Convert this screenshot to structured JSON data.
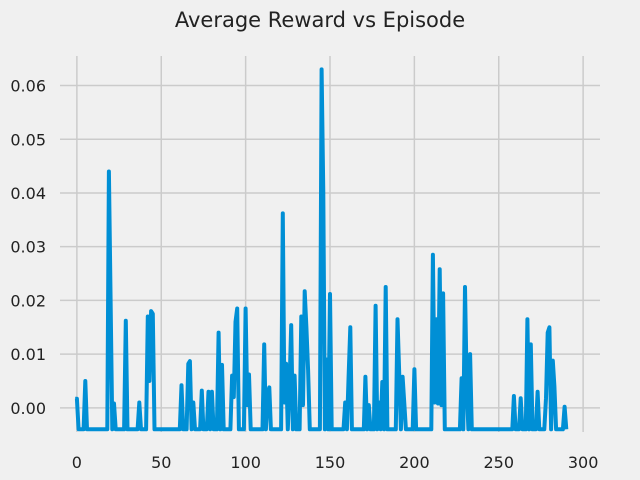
{
  "chart_data": {
    "type": "line",
    "title": "Average Reward vs Episode",
    "xlabel": "",
    "ylabel": "",
    "xlim": [
      -10,
      310
    ],
    "ylim": [
      -0.0045,
      0.0655
    ],
    "grid": true,
    "xticks": [
      0,
      50,
      100,
      150,
      200,
      250,
      300
    ],
    "yticks": [
      0.0,
      0.01,
      0.02,
      0.03,
      0.04,
      0.05,
      0.06
    ],
    "ytick_labels": [
      "0.00",
      "0.01",
      "0.02",
      "0.03",
      "0.04",
      "0.05",
      "0.06"
    ],
    "line_color": "#008fd5",
    "series": [
      {
        "points": [
          [
            -1,
            0.0017
          ],
          [
            0,
            0.0017
          ],
          [
            1,
            -0.004
          ],
          [
            4,
            -0.004
          ],
          [
            5,
            0.005
          ],
          [
            6,
            -0.004
          ],
          [
            18,
            -0.004
          ],
          [
            19,
            0.044
          ],
          [
            20,
            0.02
          ],
          [
            21,
            -0.004
          ],
          [
            22,
            0.0008
          ],
          [
            23,
            -0.004
          ],
          [
            28,
            -0.004
          ],
          [
            29,
            0.0162
          ],
          [
            30,
            -0.004
          ],
          [
            36,
            -0.004
          ],
          [
            37,
            0.001
          ],
          [
            38,
            -0.004
          ],
          [
            41,
            -0.004
          ],
          [
            42,
            0.017
          ],
          [
            43,
            0.005
          ],
          [
            44,
            0.018
          ],
          [
            45,
            0.0175
          ],
          [
            46,
            -0.004
          ],
          [
            61,
            -0.004
          ],
          [
            62,
            0.0042
          ],
          [
            63,
            -0.004
          ],
          [
            65,
            -0.004
          ],
          [
            66,
            0.0082
          ],
          [
            67,
            0.0087
          ],
          [
            68,
            -0.004
          ],
          [
            69,
            0.001
          ],
          [
            70,
            -0.004
          ],
          [
            73,
            -0.004
          ],
          [
            74,
            0.0032
          ],
          [
            75,
            -0.004
          ],
          [
            77,
            -0.004
          ],
          [
            78,
            0.003
          ],
          [
            79,
            -0.004
          ],
          [
            80,
            0.003
          ],
          [
            81,
            -0.004
          ],
          [
            83,
            -0.004
          ],
          [
            84,
            0.014
          ],
          [
            85,
            -0.004
          ],
          [
            86,
            0.008
          ],
          [
            87,
            -0.004
          ],
          [
            91,
            -0.004
          ],
          [
            92,
            0.006
          ],
          [
            93,
            0.002
          ],
          [
            94,
            0.016
          ],
          [
            95,
            0.0185
          ],
          [
            96,
            -0.004
          ],
          [
            99,
            -0.004
          ],
          [
            100,
            0.0185
          ],
          [
            101,
            0.0005
          ],
          [
            102,
            0.0062
          ],
          [
            103,
            -0.004
          ],
          [
            110,
            -0.004
          ],
          [
            111,
            0.0118
          ],
          [
            112,
            -0.004
          ],
          [
            113,
            0.0026
          ],
          [
            114,
            0.0038
          ],
          [
            115,
            -0.004
          ],
          [
            121,
            -0.004
          ],
          [
            122,
            0.0362
          ],
          [
            123,
            0.001
          ],
          [
            124,
            0.0082
          ],
          [
            125,
            -0.004
          ],
          [
            126,
            0.004
          ],
          [
            127,
            0.0154
          ],
          [
            128,
            -0.004
          ],
          [
            129,
            0.006
          ],
          [
            130,
            -0.004
          ],
          [
            132,
            -0.004
          ],
          [
            133,
            0.017
          ],
          [
            134,
            0.0005
          ],
          [
            135,
            0.0217
          ],
          [
            136,
            0.015
          ],
          [
            137,
            0.007
          ],
          [
            138,
            -0.004
          ],
          [
            144,
            -0.004
          ],
          [
            145,
            0.063
          ],
          [
            146,
            0.04
          ],
          [
            147,
            -0.004
          ],
          [
            148,
            0.009
          ],
          [
            149,
            -0.004
          ],
          [
            150,
            0.0212
          ],
          [
            151,
            -0.004
          ],
          [
            158,
            -0.004
          ],
          [
            159,
            0.001
          ],
          [
            160,
            -0.004
          ],
          [
            161,
            0.0058
          ],
          [
            162,
            0.015
          ],
          [
            163,
            -0.004
          ],
          [
            170,
            -0.004
          ],
          [
            171,
            0.0058
          ],
          [
            172,
            -0.004
          ],
          [
            173,
            0.0005
          ],
          [
            174,
            -0.004
          ],
          [
            176,
            -0.004
          ],
          [
            177,
            0.019
          ],
          [
            178,
            -0.004
          ],
          [
            179,
            0.001
          ],
          [
            180,
            -0.004
          ],
          [
            181,
            0.0048
          ],
          [
            182,
            -0.004
          ],
          [
            183,
            0.0225
          ],
          [
            184,
            -0.004
          ],
          [
            189,
            -0.004
          ],
          [
            190,
            0.0165
          ],
          [
            191,
            0.0065
          ],
          [
            192,
            -0.004
          ],
          [
            193,
            0.0058
          ],
          [
            194,
            0.0008
          ],
          [
            195,
            -0.004
          ],
          [
            199,
            -0.004
          ],
          [
            200,
            0.0072
          ],
          [
            201,
            -0.004
          ],
          [
            210,
            -0.004
          ],
          [
            211,
            0.0285
          ],
          [
            212,
            0.001
          ],
          [
            213,
            0.0165
          ],
          [
            214,
            0.0008
          ],
          [
            215,
            0.0258
          ],
          [
            216,
            0.0005
          ],
          [
            217,
            0.0213
          ],
          [
            218,
            -0.004
          ],
          [
            227,
            -0.004
          ],
          [
            228,
            0.0055
          ],
          [
            229,
            -0.004
          ],
          [
            230,
            0.0225
          ],
          [
            231,
            0.004
          ],
          [
            232,
            -0.004
          ],
          [
            233,
            0.01
          ],
          [
            234,
            -0.004
          ],
          [
            258,
            -0.004
          ],
          [
            259,
            0.0022
          ],
          [
            260,
            -0.004
          ],
          [
            262,
            -0.004
          ],
          [
            263,
            0.0018
          ],
          [
            264,
            -0.004
          ],
          [
            266,
            -0.004
          ],
          [
            267,
            0.0165
          ],
          [
            268,
            -0.004
          ],
          [
            269,
            0.0118
          ],
          [
            270,
            -0.004
          ],
          [
            272,
            -0.004
          ],
          [
            273,
            0.003
          ],
          [
            274,
            -0.004
          ],
          [
            277,
            -0.004
          ],
          [
            278,
            0.0018
          ],
          [
            279,
            0.014
          ],
          [
            280,
            0.015
          ],
          [
            281,
            -0.004
          ],
          [
            282,
            0.0088
          ],
          [
            283,
            0.004
          ],
          [
            284,
            -0.004
          ],
          [
            288,
            -0.004
          ],
          [
            289,
            0.0002
          ],
          [
            290,
            -0.004
          ]
        ]
      }
    ]
  }
}
